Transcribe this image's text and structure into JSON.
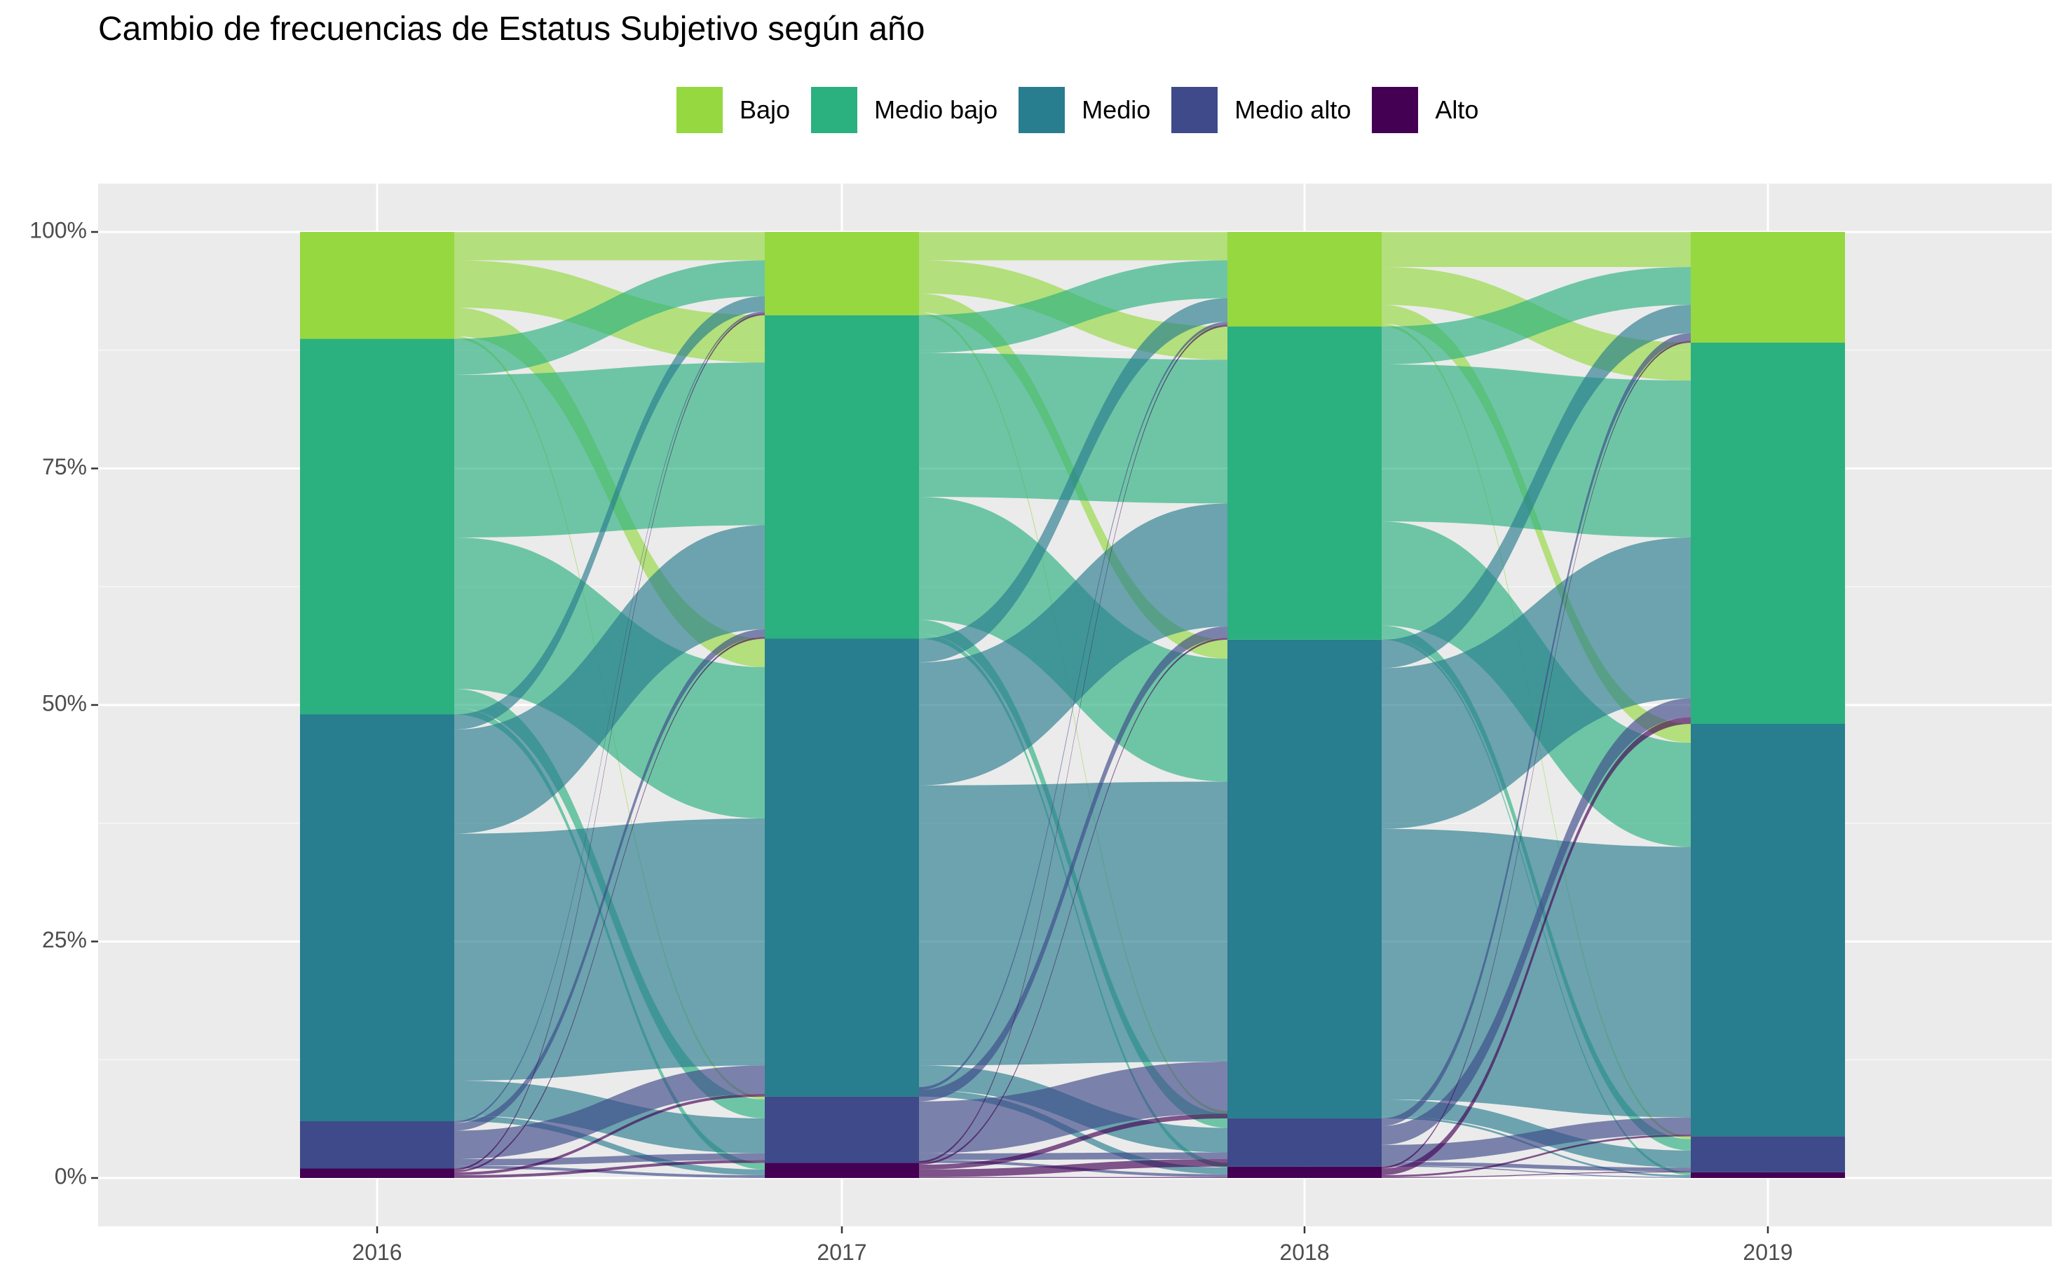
{
  "title": "Cambio de frecuencias de Estatus Subjetivo según año",
  "legend": {
    "items": [
      {
        "label": "Bajo",
        "color": "#95d840"
      },
      {
        "label": "Medio bajo",
        "color": "#2bb07f"
      },
      {
        "label": "Medio",
        "color": "#287d8e"
      },
      {
        "label": "Medio alto",
        "color": "#3e4a89"
      },
      {
        "label": "Alto",
        "color": "#440154"
      }
    ]
  },
  "chart_data": {
    "type": "alluvial",
    "title": "Cambio de frecuencias de Estatus Subjetivo según año",
    "xlabel": "",
    "ylabel": "",
    "x": [
      "2016",
      "2017",
      "2018",
      "2019"
    ],
    "ylim": [
      0,
      100
    ],
    "yticks": [
      "0%",
      "25%",
      "50%",
      "75%",
      "100%"
    ],
    "grid": true,
    "legend_position": "top",
    "categories_bottom_to_top": [
      "Alto",
      "Medio alto",
      "Medio",
      "Medio bajo",
      "Bajo"
    ],
    "stacked_percent_by_year": {
      "2016": {
        "Alto": 1.0,
        "Medio alto": 5.0,
        "Medio": 43.0,
        "Medio bajo": 39.7,
        "Bajo": 11.3
      },
      "2017": {
        "Alto": 1.6,
        "Medio alto": 7.0,
        "Medio": 48.4,
        "Medio bajo": 34.2,
        "Bajo": 8.8
      },
      "2018": {
        "Alto": 1.2,
        "Medio alto": 5.1,
        "Medio": 50.6,
        "Medio bajo": 33.1,
        "Bajo": 10.0
      },
      "2019": {
        "Alto": 0.6,
        "Medio alto": 3.8,
        "Medio": 43.6,
        "Medio bajo": 40.3,
        "Bajo": 11.7
      }
    },
    "flows": [
      {
        "from_year": "2016",
        "to_year": "2017",
        "from": "Bajo",
        "to": "Bajo",
        "value": 3.0
      },
      {
        "from_year": "2016",
        "to_year": "2017",
        "from": "Bajo",
        "to": "Medio bajo",
        "value": 5.0
      },
      {
        "from_year": "2016",
        "to_year": "2017",
        "from": "Bajo",
        "to": "Medio",
        "value": 3.0
      },
      {
        "from_year": "2016",
        "to_year": "2017",
        "from": "Bajo",
        "to": "Medio alto",
        "value": 0.3
      },
      {
        "from_year": "2016",
        "to_year": "2017",
        "from": "Medio bajo",
        "to": "Bajo",
        "value": 3.8
      },
      {
        "from_year": "2016",
        "to_year": "2017",
        "from": "Medio bajo",
        "to": "Medio bajo",
        "value": 17.2
      },
      {
        "from_year": "2016",
        "to_year": "2017",
        "from": "Medio bajo",
        "to": "Medio",
        "value": 16.0
      },
      {
        "from_year": "2016",
        "to_year": "2017",
        "from": "Medio bajo",
        "to": "Medio alto",
        "value": 2.0
      },
      {
        "from_year": "2016",
        "to_year": "2017",
        "from": "Medio bajo",
        "to": "Alto",
        "value": 0.7
      },
      {
        "from_year": "2016",
        "to_year": "2017",
        "from": "Medio",
        "to": "Bajo",
        "value": 1.6
      },
      {
        "from_year": "2016",
        "to_year": "2017",
        "from": "Medio",
        "to": "Medio bajo",
        "value": 11.0
      },
      {
        "from_year": "2016",
        "to_year": "2017",
        "from": "Medio",
        "to": "Medio",
        "value": 26.1
      },
      {
        "from_year": "2016",
        "to_year": "2017",
        "from": "Medio",
        "to": "Medio alto",
        "value": 3.7
      },
      {
        "from_year": "2016",
        "to_year": "2017",
        "from": "Medio",
        "to": "Alto",
        "value": 0.6
      },
      {
        "from_year": "2016",
        "to_year": "2017",
        "from": "Medio alto",
        "to": "Bajo",
        "value": 0.2
      },
      {
        "from_year": "2016",
        "to_year": "2017",
        "from": "Medio alto",
        "to": "Medio bajo",
        "value": 0.8
      },
      {
        "from_year": "2016",
        "to_year": "2017",
        "from": "Medio alto",
        "to": "Medio",
        "value": 3.0
      },
      {
        "from_year": "2016",
        "to_year": "2017",
        "from": "Medio alto",
        "to": "Medio alto",
        "value": 0.7
      },
      {
        "from_year": "2016",
        "to_year": "2017",
        "from": "Medio alto",
        "to": "Alto",
        "value": 0.3
      },
      {
        "from_year": "2016",
        "to_year": "2017",
        "from": "Alto",
        "to": "Bajo",
        "value": 0.2
      },
      {
        "from_year": "2016",
        "to_year": "2017",
        "from": "Alto",
        "to": "Medio bajo",
        "value": 0.2
      },
      {
        "from_year": "2016",
        "to_year": "2017",
        "from": "Alto",
        "to": "Medio",
        "value": 0.3
      },
      {
        "from_year": "2016",
        "to_year": "2017",
        "from": "Alto",
        "to": "Medio alto",
        "value": 0.3
      },
      {
        "from_year": "2017",
        "to_year": "2018",
        "from": "Bajo",
        "to": "Bajo",
        "value": 3.0
      },
      {
        "from_year": "2017",
        "to_year": "2018",
        "from": "Bajo",
        "to": "Medio bajo",
        "value": 3.5
      },
      {
        "from_year": "2017",
        "to_year": "2018",
        "from": "Bajo",
        "to": "Medio",
        "value": 2.0
      },
      {
        "from_year": "2017",
        "to_year": "2018",
        "from": "Bajo",
        "to": "Medio alto",
        "value": 0.3
      },
      {
        "from_year": "2017",
        "to_year": "2018",
        "from": "Medio bajo",
        "to": "Bajo",
        "value": 4.0
      },
      {
        "from_year": "2017",
        "to_year": "2018",
        "from": "Medio bajo",
        "to": "Medio bajo",
        "value": 15.2
      },
      {
        "from_year": "2017",
        "to_year": "2018",
        "from": "Medio bajo",
        "to": "Medio",
        "value": 13.0
      },
      {
        "from_year": "2017",
        "to_year": "2018",
        "from": "Medio bajo",
        "to": "Medio alto",
        "value": 1.5
      },
      {
        "from_year": "2017",
        "to_year": "2018",
        "from": "Medio bajo",
        "to": "Alto",
        "value": 0.5
      },
      {
        "from_year": "2017",
        "to_year": "2018",
        "from": "Medio",
        "to": "Bajo",
        "value": 2.5
      },
      {
        "from_year": "2017",
        "to_year": "2018",
        "from": "Medio",
        "to": "Medio bajo",
        "value": 13.0
      },
      {
        "from_year": "2017",
        "to_year": "2018",
        "from": "Medio",
        "to": "Medio",
        "value": 29.6
      },
      {
        "from_year": "2017",
        "to_year": "2018",
        "from": "Medio",
        "to": "Medio alto",
        "value": 2.6
      },
      {
        "from_year": "2017",
        "to_year": "2018",
        "from": "Medio",
        "to": "Alto",
        "value": 0.7
      },
      {
        "from_year": "2017",
        "to_year": "2018",
        "from": "Medio alto",
        "to": "Bajo",
        "value": 0.3
      },
      {
        "from_year": "2017",
        "to_year": "2018",
        "from": "Medio alto",
        "to": "Medio bajo",
        "value": 1.2
      },
      {
        "from_year": "2017",
        "to_year": "2018",
        "from": "Medio alto",
        "to": "Medio",
        "value": 5.5
      },
      {
        "from_year": "2017",
        "to_year": "2018",
        "from": "Medio alto",
        "to": "Medio alto",
        "value": 0.7
      },
      {
        "from_year": "2017",
        "to_year": "2018",
        "from": "Medio alto",
        "to": "Alto",
        "value": 0.3
      },
      {
        "from_year": "2017",
        "to_year": "2018",
        "from": "Alto",
        "to": "Bajo",
        "value": 0.2
      },
      {
        "from_year": "2017",
        "to_year": "2018",
        "from": "Alto",
        "to": "Medio bajo",
        "value": 0.2
      },
      {
        "from_year": "2017",
        "to_year": "2018",
        "from": "Alto",
        "to": "Medio",
        "value": 0.5
      },
      {
        "from_year": "2017",
        "to_year": "2018",
        "from": "Alto",
        "to": "Medio alto",
        "value": 0.8
      },
      {
        "from_year": "2017",
        "to_year": "2018",
        "from": "Alto",
        "to": "Alto",
        "value": 0.1
      },
      {
        "from_year": "2018",
        "to_year": "2019",
        "from": "Bajo",
        "to": "Bajo",
        "value": 3.7
      },
      {
        "from_year": "2018",
        "to_year": "2019",
        "from": "Bajo",
        "to": "Medio bajo",
        "value": 4.0
      },
      {
        "from_year": "2018",
        "to_year": "2019",
        "from": "Bajo",
        "to": "Medio",
        "value": 2.0
      },
      {
        "from_year": "2018",
        "to_year": "2019",
        "from": "Bajo",
        "to": "Medio alto",
        "value": 0.3
      },
      {
        "from_year": "2018",
        "to_year": "2019",
        "from": "Medio bajo",
        "to": "Bajo",
        "value": 4.0
      },
      {
        "from_year": "2018",
        "to_year": "2019",
        "from": "Medio bajo",
        "to": "Medio bajo",
        "value": 16.6
      },
      {
        "from_year": "2018",
        "to_year": "2019",
        "from": "Medio bajo",
        "to": "Medio",
        "value": 11.0
      },
      {
        "from_year": "2018",
        "to_year": "2019",
        "from": "Medio bajo",
        "to": "Medio alto",
        "value": 1.2
      },
      {
        "from_year": "2018",
        "to_year": "2019",
        "from": "Medio bajo",
        "to": "Alto",
        "value": 0.3
      },
      {
        "from_year": "2018",
        "to_year": "2019",
        "from": "Medio",
        "to": "Bajo",
        "value": 3.0
      },
      {
        "from_year": "2018",
        "to_year": "2019",
        "from": "Medio",
        "to": "Medio bajo",
        "value": 17.0
      },
      {
        "from_year": "2018",
        "to_year": "2019",
        "from": "Medio",
        "to": "Medio",
        "value": 28.6
      },
      {
        "from_year": "2018",
        "to_year": "2019",
        "from": "Medio",
        "to": "Medio alto",
        "value": 1.8
      },
      {
        "from_year": "2018",
        "to_year": "2019",
        "from": "Medio",
        "to": "Alto",
        "value": 0.2
      },
      {
        "from_year": "2018",
        "to_year": "2019",
        "from": "Medio alto",
        "to": "Bajo",
        "value": 0.8
      },
      {
        "from_year": "2018",
        "to_year": "2019",
        "from": "Medio alto",
        "to": "Medio bajo",
        "value": 2.0
      },
      {
        "from_year": "2018",
        "to_year": "2019",
        "from": "Medio alto",
        "to": "Medio",
        "value": 1.8
      },
      {
        "from_year": "2018",
        "to_year": "2019",
        "from": "Medio alto",
        "to": "Medio alto",
        "value": 0.4
      },
      {
        "from_year": "2018",
        "to_year": "2019",
        "from": "Medio alto",
        "to": "Alto",
        "value": 0.1
      },
      {
        "from_year": "2018",
        "to_year": "2019",
        "from": "Alto",
        "to": "Bajo",
        "value": 0.2
      },
      {
        "from_year": "2018",
        "to_year": "2019",
        "from": "Alto",
        "to": "Medio bajo",
        "value": 0.7
      },
      {
        "from_year": "2018",
        "to_year": "2019",
        "from": "Alto",
        "to": "Medio",
        "value": 0.2
      },
      {
        "from_year": "2018",
        "to_year": "2019",
        "from": "Alto",
        "to": "Medio alto",
        "value": 0.1
      }
    ]
  }
}
